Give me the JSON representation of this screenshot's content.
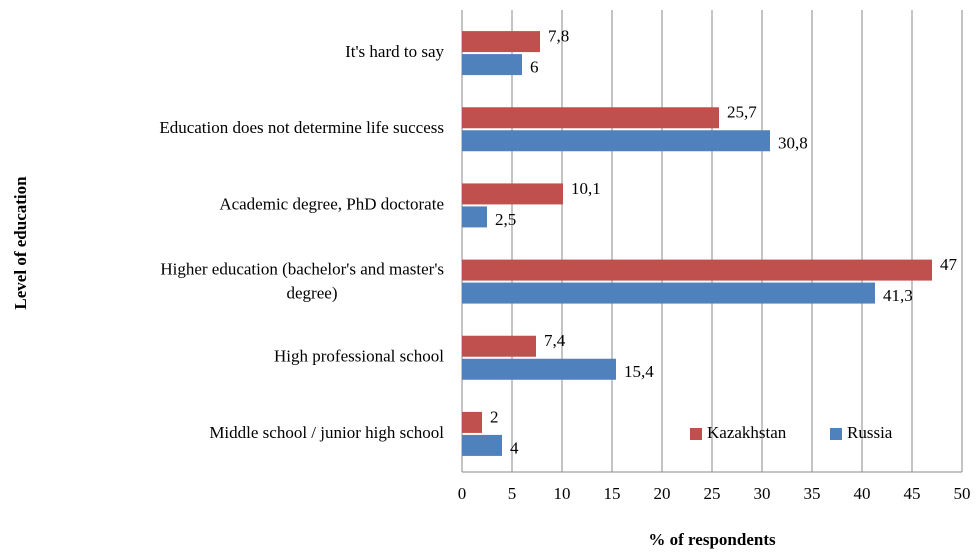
{
  "chart_data": {
    "type": "barh",
    "xlabel": "% of respondents",
    "ylabel": "Level of education",
    "categories": [
      "It's hard to say",
      "Education does not determine life success",
      "Academic degree, PhD doctorate",
      "Higher education (bachelor's and master's degree)",
      "High professional school",
      "Middle school / junior high school"
    ],
    "series": [
      {
        "name": "Kazakhstan",
        "color": "#c0504d",
        "values": [
          7.8,
          25.7,
          10.1,
          47,
          7.4,
          2
        ],
        "value_labels": [
          "7,8",
          "25,7",
          "10,1",
          "47",
          "7,4",
          "2"
        ]
      },
      {
        "name": "Russia",
        "color": "#4f81bd",
        "values": [
          6,
          30.8,
          2.5,
          41.3,
          15.4,
          4
        ],
        "value_labels": [
          "6",
          "30,8",
          "2,5",
          "41,3",
          "15,4",
          "4"
        ]
      }
    ],
    "xlim": [
      0,
      50
    ],
    "xticks": [
      0,
      5,
      10,
      15,
      20,
      25,
      30,
      35,
      40,
      45,
      50
    ],
    "grid": true,
    "legend": "lower right"
  }
}
